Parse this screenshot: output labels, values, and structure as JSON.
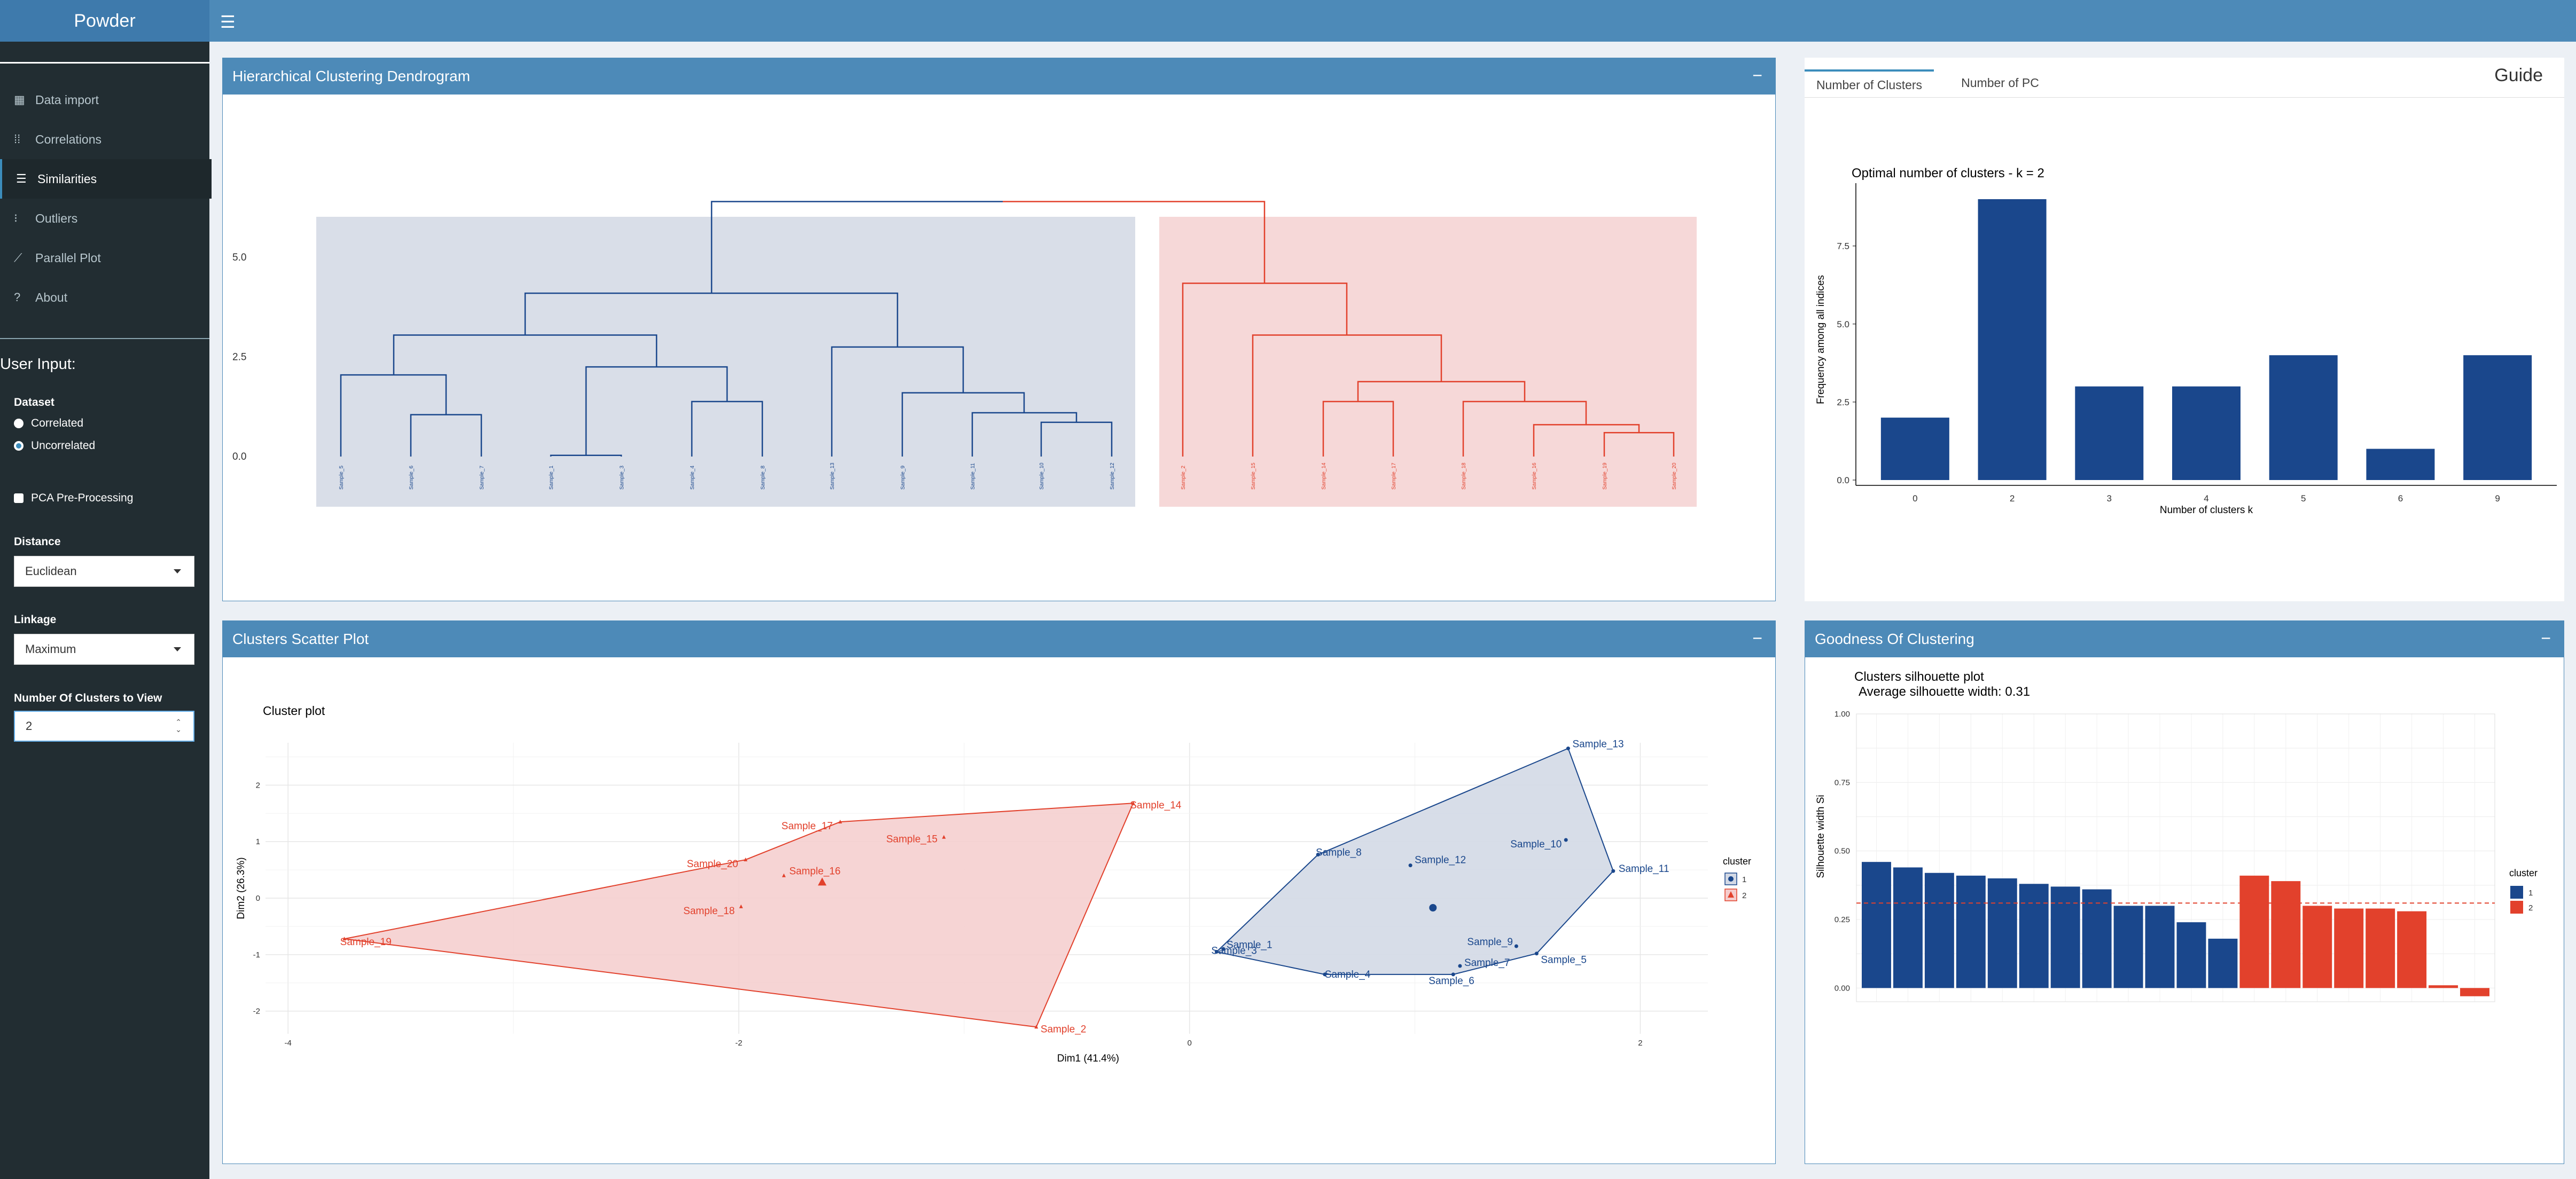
{
  "app": {
    "title": "Powder"
  },
  "sidebar": {
    "menu": [
      {
        "label": "Data import",
        "icon": "table-icon"
      },
      {
        "label": "Correlations",
        "icon": "grid-icon"
      },
      {
        "label": "Similarities",
        "icon": "bars-icon"
      },
      {
        "label": "Outliers",
        "icon": "dots-icon"
      },
      {
        "label": "Parallel Plot",
        "icon": "line-chart-icon"
      },
      {
        "label": "About",
        "icon": "question-icon"
      }
    ],
    "user_input_title": "User Input:",
    "dataset": {
      "label": "Dataset",
      "options": [
        "Correlated",
        "Uncorrelated"
      ],
      "selected": "Uncorrelated"
    },
    "pca": {
      "label": "PCA Pre-Processing",
      "checked": false
    },
    "distance": {
      "label": "Distance",
      "value": "Euclidean"
    },
    "linkage": {
      "label": "Linkage",
      "value": "Maximum"
    },
    "clusters": {
      "label": "Number Of Clusters to View",
      "value": "2"
    }
  },
  "dendrogram_box": {
    "title": "Hierarchical Clustering Dendrogram",
    "collapse": "−"
  },
  "scatter_box": {
    "title": "Clusters Scatter Plot",
    "collapse": "−"
  },
  "goodness_box": {
    "title": "Goodness Of Clustering",
    "collapse": "−"
  },
  "guide_box": {
    "tabs": [
      "Number of Clusters",
      "Number of PC"
    ],
    "active_tab": "Number of Clusters",
    "title": "Guide"
  },
  "colors": {
    "cluster1": "#1a478c",
    "cluster2": "#e2412c"
  },
  "chart_data": [
    {
      "type": "dendrogram",
      "y_ticks": [
        "0.0",
        "2.5",
        "5.0"
      ],
      "ylim": [
        0,
        6.6
      ],
      "leaves": [
        {
          "label": "Sample_5",
          "cluster": 1
        },
        {
          "label": "Sample_6",
          "cluster": 1
        },
        {
          "label": "Sample_7",
          "cluster": 1
        },
        {
          "label": "Sample_1",
          "cluster": 1
        },
        {
          "label": "Sample_3",
          "cluster": 1
        },
        {
          "label": "Sample_4",
          "cluster": 1
        },
        {
          "label": "Sample_8",
          "cluster": 1
        },
        {
          "label": "Sample_13",
          "cluster": 1
        },
        {
          "label": "Sample_9",
          "cluster": 1
        },
        {
          "label": "Sample_11",
          "cluster": 1
        },
        {
          "label": "Sample_10",
          "cluster": 1
        },
        {
          "label": "Sample_12",
          "cluster": 1
        },
        {
          "label": "Sample_2",
          "cluster": 2
        },
        {
          "label": "Sample_15",
          "cluster": 2
        },
        {
          "label": "Sample_14",
          "cluster": 2
        },
        {
          "label": "Sample_17",
          "cluster": 2
        },
        {
          "label": "Sample_18",
          "cluster": 2
        },
        {
          "label": "Sample_16",
          "cluster": 2
        },
        {
          "label": "Sample_19",
          "cluster": 2
        },
        {
          "label": "Sample_20",
          "cluster": 2
        }
      ]
    },
    {
      "type": "bar",
      "title": "Optimal number of clusters - k = 2",
      "xlabel": "Number of clusters k",
      "ylabel": "Frequency among all indices",
      "categories": [
        "0",
        "2",
        "3",
        "4",
        "5",
        "6",
        "9"
      ],
      "values": [
        2,
        9,
        3,
        3,
        4,
        1,
        4
      ],
      "y_ticks": [
        "0.0",
        "2.5",
        "5.0",
        "7.5"
      ],
      "ylim": [
        0,
        9.5
      ]
    },
    {
      "type": "scatter",
      "title": "Cluster plot",
      "xlabel": "Dim1 (41.4%)",
      "ylabel": "Dim2 (26.3%)",
      "xlim": [
        -4.1,
        2.3
      ],
      "ylim": [
        -2.4,
        2.75
      ],
      "x_ticks": [
        -4,
        -2,
        0,
        2
      ],
      "y_ticks": [
        -2,
        -1,
        0,
        1,
        2
      ],
      "legend": {
        "title": "cluster",
        "items": [
          "1",
          "2"
        ]
      },
      "points": [
        {
          "label": "Sample_1",
          "x": 0.15,
          "y": -0.9,
          "cluster": 1
        },
        {
          "label": "Sample_3",
          "x": 0.12,
          "y": -0.95,
          "cluster": 1
        },
        {
          "label": "Sample_4",
          "x": 0.6,
          "y": -1.35,
          "cluster": 1
        },
        {
          "label": "Sample_6",
          "x": 1.17,
          "y": -1.35,
          "cluster": 1
        },
        {
          "label": "Sample_7",
          "x": 1.2,
          "y": -1.2,
          "cluster": 1
        },
        {
          "label": "Sample_5",
          "x": 1.54,
          "y": -0.98,
          "cluster": 1
        },
        {
          "label": "Sample_9",
          "x": 1.45,
          "y": -0.85,
          "cluster": 1
        },
        {
          "label": "Sample_8",
          "x": 0.57,
          "y": 0.77,
          "cluster": 1
        },
        {
          "label": "Sample_12",
          "x": 0.98,
          "y": 0.58,
          "cluster": 1
        },
        {
          "label": "Sample_10",
          "x": 1.67,
          "y": 1.03,
          "cluster": 1
        },
        {
          "label": "Sample_11",
          "x": 1.88,
          "y": 0.48,
          "cluster": 1
        },
        {
          "label": "Sample_13",
          "x": 1.68,
          "y": 2.65,
          "cluster": 1
        },
        {
          "label": "Sample_19",
          "x": -3.75,
          "y": -0.72,
          "cluster": 2
        },
        {
          "label": "Sample_2",
          "x": -0.68,
          "y": -2.28,
          "cluster": 2
        },
        {
          "label": "Sample_14",
          "x": -0.25,
          "y": 1.68,
          "cluster": 2
        },
        {
          "label": "Sample_17",
          "x": -1.55,
          "y": 1.35,
          "cluster": 2
        },
        {
          "label": "Sample_15",
          "x": -1.09,
          "y": 1.08,
          "cluster": 2
        },
        {
          "label": "Sample_20",
          "x": -1.97,
          "y": 0.68,
          "cluster": 2
        },
        {
          "label": "Sample_16",
          "x": -1.8,
          "y": 0.4,
          "cluster": 2
        },
        {
          "label": "Sample_18",
          "x": -1.99,
          "y": -0.15,
          "cluster": 2
        }
      ],
      "centroids": [
        {
          "x": 1.08,
          "y": -0.17,
          "cluster": 1
        },
        {
          "x": -1.63,
          "y": 0.28,
          "cluster": 2
        }
      ]
    },
    {
      "type": "bar",
      "title": "Clusters silhouette plot",
      "subtitle": "Average silhouette width: 0.31",
      "ylabel": "Silhouette width Si",
      "y_ticks": [
        "0.00",
        "0.25",
        "0.50",
        "0.75",
        "1.00"
      ],
      "ylim": [
        -0.05,
        1.0
      ],
      "avg": 0.31,
      "legend": {
        "title": "cluster",
        "items": [
          "1",
          "2"
        ]
      },
      "series": [
        {
          "name": "1",
          "values": [
            0.46,
            0.44,
            0.42,
            0.41,
            0.4,
            0.38,
            0.37,
            0.36,
            0.3,
            0.3,
            0.24,
            0.18
          ]
        },
        {
          "name": "2",
          "values": [
            0.41,
            0.39,
            0.3,
            0.29,
            0.29,
            0.28,
            0.01,
            -0.03
          ]
        }
      ]
    }
  ]
}
